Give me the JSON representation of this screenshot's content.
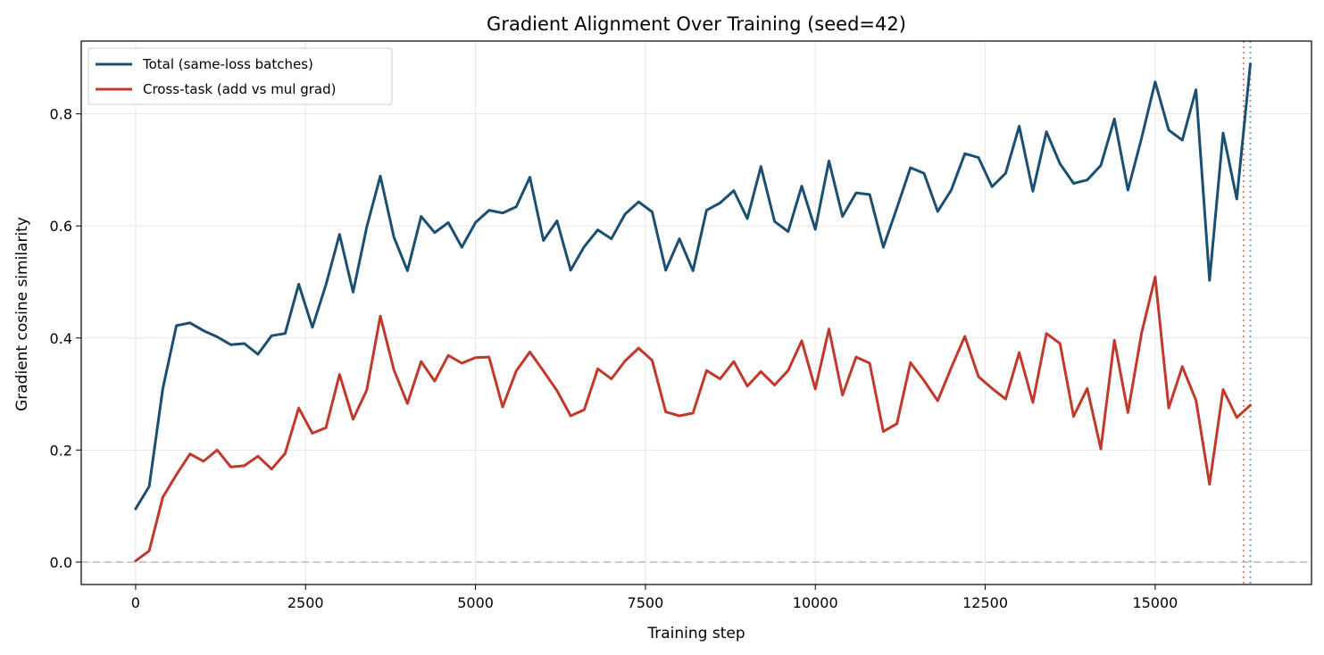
{
  "chart_data": {
    "type": "line",
    "title": "Gradient Alignment Over Training (seed=42)",
    "xlabel": "Training step",
    "ylabel": "Gradient cosine similarity",
    "xlim": [
      -800,
      17300
    ],
    "ylim": [
      -0.04,
      0.93
    ],
    "xticks": [
      0,
      2500,
      5000,
      7500,
      10000,
      12500,
      15000
    ],
    "xtick_labels": [
      "0",
      "2500",
      "5000",
      "7500",
      "10000",
      "12500",
      "15000"
    ],
    "yticks": [
      0.0,
      0.2,
      0.4,
      0.6,
      0.8
    ],
    "ytick_labels": [
      "0.0",
      "0.2",
      "0.4",
      "0.6",
      "0.8"
    ],
    "grid": true,
    "legend_position": "upper-left",
    "reference_lines": [
      {
        "orientation": "horizontal",
        "value": 0.0,
        "style": "dashed",
        "color": "#bbbbbb"
      },
      {
        "orientation": "vertical",
        "value": 16300,
        "style": "dotted",
        "color": "#e08080"
      },
      {
        "orientation": "vertical",
        "value": 16400,
        "style": "dotted",
        "color": "#7fa0c8"
      }
    ],
    "x": [
      0,
      200,
      400,
      600,
      800,
      1000,
      1200,
      1400,
      1600,
      1800,
      2000,
      2200,
      2400,
      2600,
      2800,
      3000,
      3200,
      3400,
      3600,
      3800,
      4000,
      4200,
      4400,
      4600,
      4800,
      5000,
      5200,
      5400,
      5600,
      5800,
      6000,
      6200,
      6400,
      6600,
      6800,
      7000,
      7200,
      7400,
      7600,
      7800,
      8000,
      8200,
      8400,
      8600,
      8800,
      9000,
      9200,
      9400,
      9600,
      9800,
      10000,
      10200,
      10400,
      10600,
      10800,
      11000,
      11200,
      11400,
      11600,
      11800,
      12000,
      12200,
      12400,
      12600,
      12800,
      13000,
      13200,
      13400,
      13600,
      13800,
      14000,
      14200,
      14400,
      14600,
      14800,
      15000,
      15200,
      15400,
      15600,
      15800,
      16000,
      16200,
      16400
    ],
    "series": [
      {
        "name": "Total (same-loss batches)",
        "color": "#1b4f72",
        "values": [
          0.095,
          0.135,
          0.31,
          0.422,
          0.427,
          0.413,
          0.402,
          0.388,
          0.39,
          0.371,
          0.404,
          0.408,
          0.496,
          0.419,
          0.495,
          0.585,
          0.482,
          0.598,
          0.689,
          0.58,
          0.52,
          0.617,
          0.588,
          0.606,
          0.562,
          0.606,
          0.628,
          0.623,
          0.634,
          0.687,
          0.574,
          0.609,
          0.521,
          0.563,
          0.593,
          0.577,
          0.621,
          0.643,
          0.625,
          0.521,
          0.577,
          0.52,
          0.628,
          0.641,
          0.663,
          0.613,
          0.706,
          0.608,
          0.59,
          0.671,
          0.594,
          0.716,
          0.617,
          0.659,
          0.656,
          0.562,
          0.632,
          0.704,
          0.694,
          0.626,
          0.664,
          0.729,
          0.722,
          0.67,
          0.694,
          0.778,
          0.662,
          0.768,
          0.711,
          0.676,
          0.682,
          0.708,
          0.791,
          0.664,
          0.757,
          0.857,
          0.771,
          0.753,
          0.843,
          0.503,
          0.766,
          0.648,
          0.889
        ]
      },
      {
        "name": "Cross-task (add vs mul grad)",
        "color": "#c0392b",
        "values": [
          0.002,
          0.02,
          0.116,
          0.156,
          0.193,
          0.18,
          0.2,
          0.17,
          0.172,
          0.189,
          0.166,
          0.194,
          0.275,
          0.23,
          0.24,
          0.335,
          0.255,
          0.307,
          0.439,
          0.343,
          0.283,
          0.358,
          0.323,
          0.369,
          0.355,
          0.365,
          0.366,
          0.277,
          0.341,
          0.375,
          0.341,
          0.306,
          0.261,
          0.272,
          0.345,
          0.327,
          0.359,
          0.382,
          0.36,
          0.268,
          0.261,
          0.266,
          0.342,
          0.327,
          0.358,
          0.314,
          0.34,
          0.316,
          0.342,
          0.395,
          0.309,
          0.416,
          0.298,
          0.366,
          0.355,
          0.233,
          0.247,
          0.356,
          0.324,
          0.288,
          0.347,
          0.403,
          0.331,
          0.31,
          0.291,
          0.374,
          0.285,
          0.408,
          0.39,
          0.26,
          0.31,
          0.202,
          0.396,
          0.267,
          0.409,
          0.509,
          0.275,
          0.349,
          0.289,
          0.139,
          0.308,
          0.258,
          0.28
        ]
      }
    ]
  }
}
